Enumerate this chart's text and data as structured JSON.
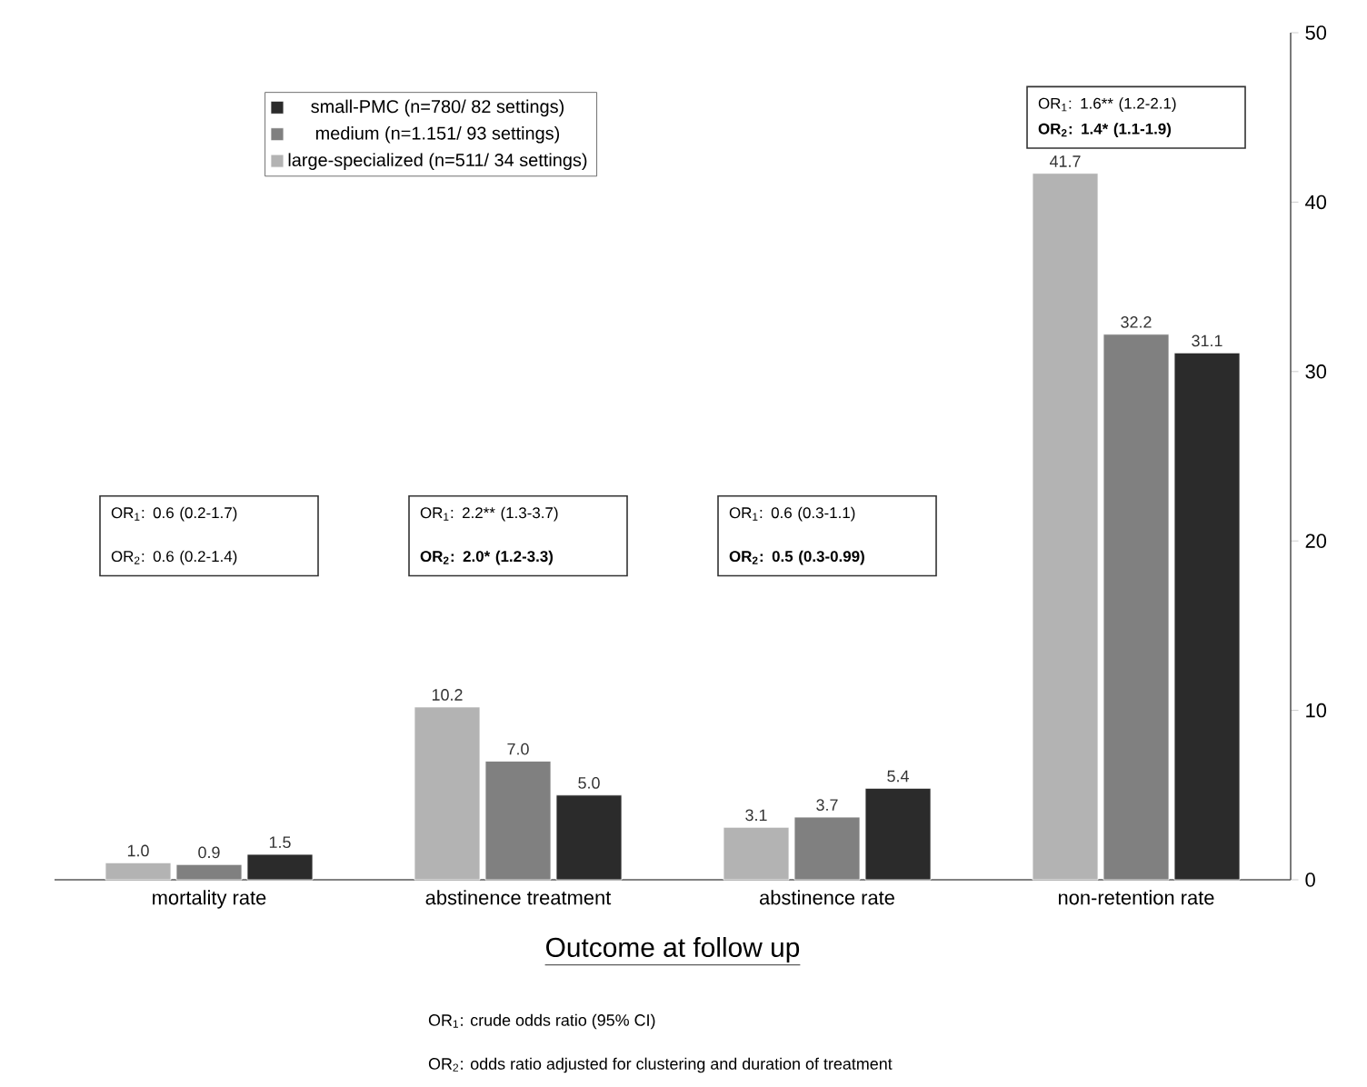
{
  "chart_data": {
    "type": "bar",
    "xlabel": "Outcome at follow up",
    "categories": [
      "mortality rate",
      "abstinence treatment",
      "abstinence rate",
      "non-retention rate"
    ],
    "series": [
      {
        "name": "large-specialized (n=511/ 34 settings)",
        "color": "#b3b3b3",
        "values": [
          1.0,
          10.2,
          3.1,
          41.7
        ],
        "value_labels": [
          "1.0",
          "10.2",
          "3.1",
          "41.7"
        ]
      },
      {
        "name": "medium (n=1.151/ 93 settings)",
        "color": "#808080",
        "values": [
          0.9,
          7.0,
          3.7,
          32.2
        ],
        "value_labels": [
          "0.9",
          "7.0",
          "3.7",
          "32.2"
        ]
      },
      {
        "name": "small-PMC (n=780/ 82 settings)",
        "color": "#2b2b2b",
        "values": [
          1.5,
          5.0,
          5.4,
          31.1
        ],
        "value_labels": [
          "1.5",
          "5.0",
          "5.4",
          "31.1"
        ]
      }
    ],
    "ylim": [
      0,
      50
    ],
    "yticks": [
      0,
      10,
      20,
      30,
      40,
      50
    ],
    "legend": "top left",
    "grid": false,
    "annotations": [
      "OR$_{1}$: 0.6 (0.2-1.7)",
      "OR$_{2}$: 0.6 (0.2-1.4)",
      "OR$_{1}$: 2.2** (1.3-3.7)",
      "**OR$_{2}$: 2.0* (1.2-3.3)**",
      "OR$_{1}$: 0.6 (0.3-1.1)",
      "**OR$_{2}$: 0.5 (0.3-0.99)**",
      "OR$_{1}$: 1.6** (1.2-2.1)",
      "**OR$_{2}$: 1.4* (1.1-1.9)**",
      "OR$_{1}$: crude odds ratio (95% CI)",
      "OR$_{2}$: odds ratio adjusted for clustering and duration of treatment"
    ]
  }
}
